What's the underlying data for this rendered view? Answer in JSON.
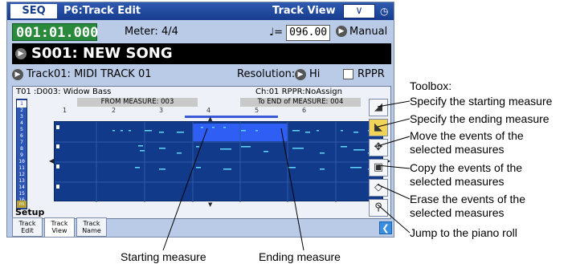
{
  "title_bar": {
    "mode": "SEQ",
    "page": "P6:Track Edit",
    "view": "Track View",
    "menu_glyph": "∨",
    "tempo_icon": "metronome-icon"
  },
  "transport": {
    "locator": "001:01.000",
    "meter_label": "Meter:",
    "meter_value": "4/4",
    "tempo_symbol": "♩=",
    "tempo_value": "096.00",
    "tempo_mode": "Manual"
  },
  "song": {
    "name": "S001: NEW SONG"
  },
  "track_row": {
    "track": "Track01: MIDI TRACK 01",
    "resolution_label": "Resolution:",
    "resolution_value": "Hi",
    "rppr_label": "RPPR"
  },
  "track_view": {
    "track_info": "T01 :D003: Widow Bass",
    "ch_info": "Ch:01   RPPR:NoAssign",
    "from_measure": "FROM MEASURE: 003",
    "to_measure": "To END of MEASURE: 004",
    "ruler": [
      "1",
      "2",
      "3",
      "4",
      "5",
      "6"
    ],
    "track_numbers": [
      "1",
      "2",
      "3",
      "4",
      "5",
      "6",
      "7",
      "8",
      "9",
      "10",
      "11",
      "12",
      "13",
      "14",
      "15",
      "16"
    ],
    "master_label": "m",
    "setup_label": "Setup"
  },
  "bottom_tabs": [
    {
      "line1": "Track",
      "line2": "Edit"
    },
    {
      "line1": "Track",
      "line2": "View"
    },
    {
      "line1": "Track",
      "line2": "Name"
    }
  ],
  "toolbox_icons": [
    "start-measure-icon",
    "end-measure-icon",
    "move-icon",
    "copy-icon",
    "erase-icon",
    "zoom-icon"
  ],
  "annotations": {
    "toolbox": "Toolbox:",
    "start": "Specify the starting measure",
    "end": "Specify the ending measure",
    "move_1": "Move the events of the",
    "move_2": "selected measures",
    "copy_1": "Copy the events of the",
    "copy_2": "selected measures",
    "erase_1": "Erase the events of the",
    "erase_2": "selected measures",
    "jump": "Jump to the piano roll",
    "starting_measure": "Starting measure",
    "ending_measure": "Ending measure"
  }
}
